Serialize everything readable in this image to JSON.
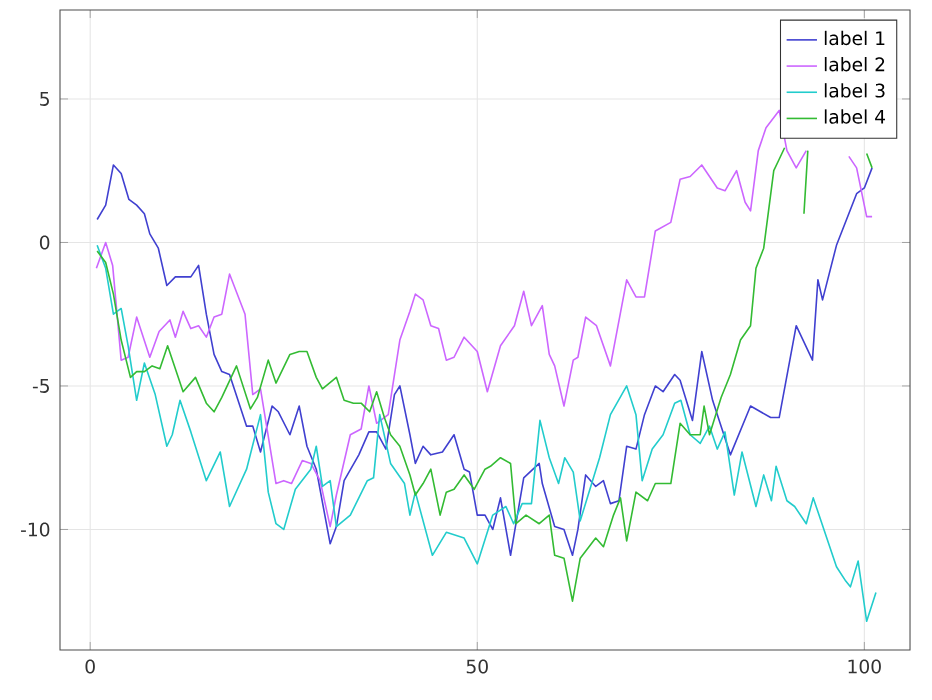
{
  "chart_data": {
    "type": "line",
    "xlim": [
      -3.9,
      105.9
    ],
    "ylim": [
      -14.2,
      8.1
    ],
    "xticks": [
      0,
      50,
      100
    ],
    "yticks": [
      -10,
      -5,
      0,
      5
    ],
    "grid": true,
    "legend": "top right",
    "series": [
      {
        "name": "label 1",
        "color": "#4040d0",
        "x": [
          0.9,
          2,
          3,
          4,
          5,
          6,
          7,
          7.7,
          8.8,
          9.9,
          11,
          13,
          14,
          15,
          16,
          17,
          18,
          20.2,
          21,
          22,
          23.5,
          24.3,
          25.8,
          27,
          28,
          29.2,
          31,
          31.8,
          32.8,
          34.7,
          36,
          37,
          38.2,
          39.3,
          40,
          41.3,
          42,
          43,
          44,
          45.5,
          47,
          48.3,
          49,
          50,
          51,
          52,
          53,
          54.3,
          56,
          58,
          58.4,
          60,
          61.2,
          62.3,
          63,
          64,
          65.3,
          66.3,
          67.2,
          68.3,
          69.3,
          70.5,
          71.6,
          73,
          74,
          75.5,
          76.2,
          77.8,
          79,
          80.4,
          82.7,
          85.3,
          87.9,
          89,
          91.2,
          93.3,
          94,
          94.6,
          96.4,
          99,
          100,
          101
        ],
        "values": [
          0.8,
          1.3,
          2.7,
          2.4,
          1.5,
          1.3,
          1.0,
          0.3,
          -0.2,
          -1.5,
          -1.2,
          -1.2,
          -0.8,
          -2.5,
          -3.9,
          -4.5,
          -4.6,
          -6.4,
          -6.4,
          -7.3,
          -5.7,
          -5.9,
          -6.7,
          -5.7,
          -7.1,
          -7.9,
          -10.5,
          -9.9,
          -8.3,
          -7.4,
          -6.6,
          -6.6,
          -7.2,
          -5.3,
          -5,
          -6.7,
          -7.7,
          -7.1,
          -7.4,
          -7.3,
          -6.7,
          -7.9,
          -8,
          -9.5,
          -9.5,
          -10,
          -8.9,
          -10.9,
          -8.2,
          -7.7,
          -8.4,
          -9.9,
          -10,
          -10.9,
          -10,
          -8.1,
          -8.5,
          -8.3,
          -9.1,
          -9,
          -7.1,
          -7.2,
          -6,
          -5,
          -5.2,
          -4.6,
          -4.8,
          -6.2,
          -3.8,
          -5.5,
          -7.4,
          -5.7,
          -6.1,
          -6.1,
          -2.9,
          -4.1,
          -1.3,
          -2,
          -0.1,
          1.7,
          1.9,
          2.6
        ]
      },
      {
        "name": "label 2",
        "color": "#cc66ff",
        "x": [
          0.8,
          2,
          2.9,
          4,
          4.9,
          6,
          7.7,
          8.9,
          10.3,
          11,
          12,
          13,
          14,
          15,
          16,
          17,
          18,
          20,
          21,
          22,
          24,
          25,
          26,
          27.4,
          28.5,
          29.7,
          31,
          31.8,
          33.6,
          35,
          36,
          37,
          38.5,
          40,
          41.3,
          42,
          43,
          44,
          45,
          46,
          47,
          48.3,
          50,
          51.3,
          53,
          54.8,
          56,
          57,
          58.4,
          59.3,
          60,
          61.2,
          62.4,
          63,
          64,
          65.4,
          67.2,
          69.3,
          70.5,
          71.6,
          73,
          75,
          76.2,
          77.5,
          79,
          81,
          82,
          83.5,
          84.6,
          85.3,
          86.3,
          87.3,
          89,
          90,
          91.2,
          92.5,
          95,
          98,
          99,
          100.3,
          101
        ],
        "values": [
          -0.9,
          0,
          -0.8,
          -4.1,
          -4,
          -2.6,
          -4,
          -3.1,
          -2.7,
          -3.3,
          -2.4,
          -3,
          -2.9,
          -3.3,
          -2.6,
          -2.5,
          -1.1,
          -2.5,
          -5.3,
          -5.1,
          -8.4,
          -8.3,
          -8.4,
          -7.6,
          -7.7,
          -8.3,
          -9.9,
          -8.8,
          -6.7,
          -6.5,
          -5,
          -6.3,
          -6,
          -3.4,
          -2.4,
          -1.8,
          -2,
          -2.9,
          -3,
          -4.1,
          -4,
          -3.3,
          -3.8,
          -5.2,
          -3.6,
          -2.9,
          -1.7,
          -2.9,
          -2.2,
          -3.9,
          -4.3,
          -5.7,
          -4.1,
          -4,
          -2.6,
          -2.9,
          -4.3,
          -1.3,
          -1.9,
          -1.9,
          0.4,
          0.7,
          2.2,
          2.3,
          2.7,
          1.9,
          1.8,
          2.5,
          1.4,
          1.1,
          3.2,
          4,
          4.6,
          3.2,
          2.6,
          3.2,
          null,
          3.0,
          2.6,
          0.9,
          0.9
        ]
      },
      {
        "name": "label 3",
        "color": "#22cccc",
        "x": [
          0.9,
          2,
          3,
          4,
          4.9,
          6,
          7,
          8.4,
          9.9,
          10.6,
          11.6,
          13,
          15,
          16.8,
          18,
          20.2,
          22,
          23,
          24,
          25,
          26.5,
          28.5,
          29.2,
          30,
          31,
          31.8,
          33.6,
          35.8,
          36.6,
          37.4,
          38.8,
          40.6,
          41.3,
          42,
          44.2,
          46,
          48.3,
          50,
          52,
          53.7,
          54.7,
          55.8,
          57,
          58.1,
          59.3,
          60.5,
          61.3,
          62.4,
          63.3,
          65.8,
          67.2,
          69.3,
          70.5,
          71.3,
          72.6,
          74,
          75.5,
          76.3,
          77.5,
          78.8,
          80,
          81,
          82,
          83.2,
          84.2,
          86,
          87,
          88,
          88.6,
          90,
          91,
          92.5,
          93.4,
          96.4,
          97.6,
          98.2,
          99.2,
          100.3,
          101.5
        ],
        "values": [
          -0.1,
          -0.9,
          -2.5,
          -2.3,
          -3.6,
          -5.5,
          -4.2,
          -5.3,
          -7.1,
          -6.7,
          -5.5,
          -6.6,
          -8.3,
          -7.3,
          -9.2,
          -7.9,
          -6,
          -8.7,
          -9.8,
          -10,
          -8.6,
          -7.9,
          -7.1,
          -8.5,
          -8.3,
          -9.9,
          -9.5,
          -8.3,
          -8.2,
          -6,
          -7.7,
          -8.4,
          -9.5,
          -8.7,
          -10.9,
          -10.1,
          -10.3,
          -11.2,
          -9.5,
          -9.2,
          -9.8,
          -9.1,
          -9.1,
          -6.2,
          -7.5,
          -8.4,
          -7.5,
          -8,
          -9.7,
          -7.5,
          -6,
          -5,
          -6,
          -8.3,
          -7.2,
          -6.7,
          -5.6,
          -5.5,
          -6.7,
          -7,
          -6.4,
          -7.2,
          -6.6,
          -8.8,
          -7.3,
          -9.2,
          -8.1,
          -9,
          -7.8,
          -9,
          -9.2,
          -9.8,
          -8.9,
          -11.3,
          -11.8,
          -12,
          -11.1,
          -13.2,
          -12.2
        ]
      },
      {
        "name": "label 4",
        "color": "#33bb33",
        "x": [
          0.9,
          2,
          3,
          4,
          5.2,
          6,
          7,
          8,
          9,
          10,
          12,
          13.6,
          15,
          16,
          17,
          18.9,
          20.7,
          21.6,
          23,
          24,
          25.8,
          27,
          28,
          29.2,
          30,
          31.8,
          32.8,
          34,
          35,
          36.1,
          37,
          38,
          38.8,
          40,
          41.3,
          42,
          43,
          44,
          45.2,
          46,
          47,
          48.3,
          49.6,
          51,
          51.7,
          53,
          54.3,
          55,
          56.3,
          58,
          59.3,
          60,
          61.2,
          62.3,
          63.3,
          65.3,
          66.3,
          67.6,
          68.5,
          69.3,
          70.5,
          72,
          73,
          75,
          76.2,
          77.5,
          78.8,
          79.3,
          80,
          81.5,
          82.7,
          84,
          85.3,
          86,
          87,
          88.3,
          89,
          89.7,
          91,
          92.2,
          92.7,
          95,
          100.3,
          101
        ],
        "values": [
          -0.3,
          -0.7,
          -1.8,
          -3.4,
          -4.7,
          -4.5,
          -4.5,
          -4.3,
          -4.4,
          -3.6,
          -5.2,
          -4.7,
          -5.6,
          -5.9,
          -5.4,
          -4.3,
          -5.8,
          -5.4,
          -4.1,
          -4.9,
          -3.9,
          -3.8,
          -3.8,
          -4.7,
          -5.1,
          -4.7,
          -5.5,
          -5.6,
          -5.6,
          -5.9,
          -5.2,
          -6.1,
          -6.7,
          -7.1,
          -8.1,
          -8.8,
          -8.4,
          -7.9,
          -9.5,
          -8.7,
          -8.6,
          -8.1,
          -8.6,
          -7.9,
          -7.8,
          -7.5,
          -7.7,
          -9.8,
          -9.5,
          -9.8,
          -9.5,
          -10.9,
          -11,
          -12.5,
          -11,
          -10.3,
          -10.6,
          -9.5,
          -8.9,
          -10.4,
          -8.7,
          -9,
          -8.4,
          -8.4,
          -6.3,
          -6.7,
          -6.7,
          -5.7,
          -6.7,
          -5.4,
          -4.6,
          -3.4,
          -2.9,
          -0.9,
          -0.2,
          2.5,
          2.9,
          3.3,
          null,
          1.0,
          3.2,
          null,
          3.1,
          2.6
        ]
      }
    ]
  }
}
